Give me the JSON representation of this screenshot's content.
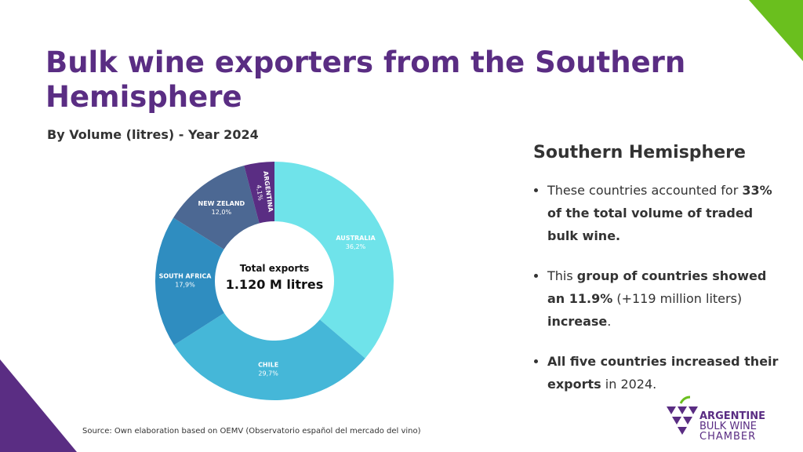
{
  "title": "Bulk wine exporters from the Southern Hemisphere",
  "subtitle": "By Volume (litres) - Year 2024",
  "chart_data": {
    "type": "donut",
    "categories": [
      "AUSTRALIA",
      "CHILE",
      "SOUTH AFRICA",
      "NEW ZELAND",
      "ARGENTINA"
    ],
    "values": [
      36.2,
      29.7,
      17.9,
      12.0,
      4.1
    ],
    "value_labels": [
      "36,2%",
      "29,7%",
      "17,9%",
      "12,0%",
      "4,1%"
    ],
    "colors": [
      "#6fe3ea",
      "#45b7d8",
      "#2f8dc0",
      "#4c6893",
      "#5a2d83"
    ],
    "center_label": "Total exports",
    "center_value": "1.120 M litres"
  },
  "source": "Source: Own elaboration based on OEMV (Observatorio español del mercado del vino)",
  "panel": {
    "heading": "Southern Hemisphere",
    "bullets": [
      [
        {
          "text": "These countries accounted for ",
          "bold": false
        },
        {
          "text": "33% of the total volume of traded bulk wine.",
          "bold": true
        }
      ],
      [
        {
          "text": "This ",
          "bold": false
        },
        {
          "text": "group of countries showed an 11.9%",
          "bold": true
        },
        {
          "text": " (+119 million liters) ",
          "bold": false
        },
        {
          "text": "increase",
          "bold": true
        },
        {
          "text": ".",
          "bold": false
        }
      ],
      [
        {
          "text": "All five countries increased their exports",
          "bold": true
        },
        {
          "text": " in 2024.",
          "bold": false
        }
      ]
    ]
  },
  "logo": {
    "line1": "ARGENTINE",
    "line2": "BULK WINE",
    "line3": "CHAMBER"
  }
}
